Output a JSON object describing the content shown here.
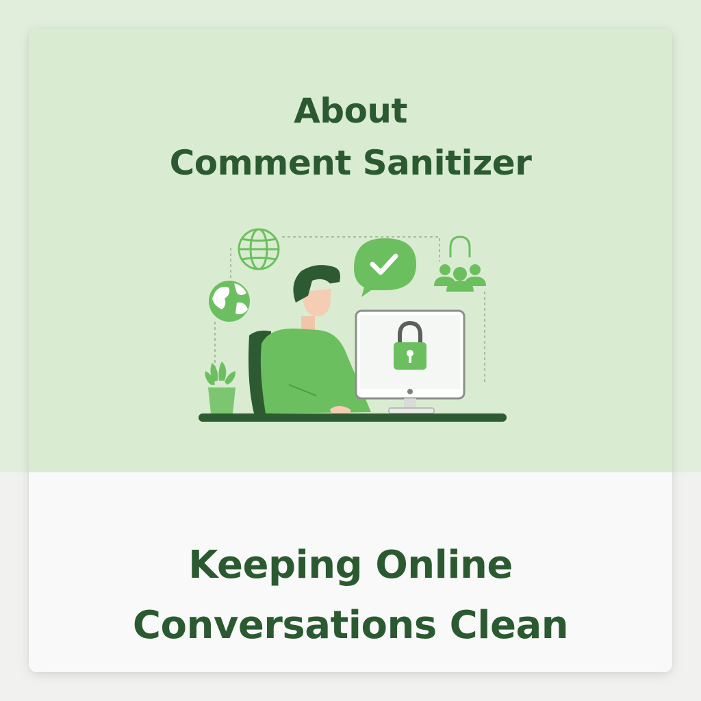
{
  "header": {
    "title_line1": "About",
    "title_line2": "Comment Sanitizer"
  },
  "illustration": {
    "icons": [
      "globe-icon",
      "earth-icon",
      "chat-check-icon",
      "users-icon",
      "lock-icon",
      "plant-icon",
      "person-icon",
      "monitor-icon"
    ]
  },
  "footer": {
    "tagline_line1": "Keeping Online",
    "tagline_line2": "Conversations Clean"
  },
  "colors": {
    "primary_dark": "#2b5a31",
    "accent_green": "#6cbf5f",
    "light_green_bg": "#d9ecd1",
    "card_bottom_bg": "#f8f9f8"
  }
}
